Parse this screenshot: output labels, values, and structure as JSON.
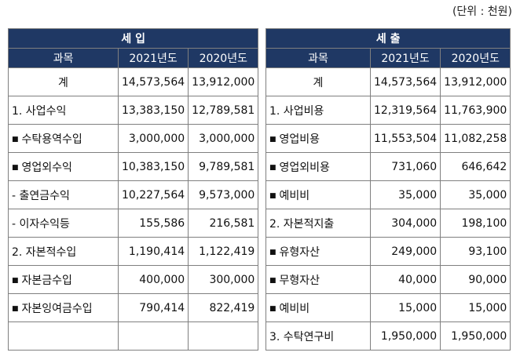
{
  "unit_label": "(단위 : 천원)",
  "income": {
    "title": "세          입",
    "headers": [
      "과목",
      "2021년도",
      "2020년도"
    ],
    "rows": [
      {
        "name": "계",
        "y2021": "14,573,564",
        "y2020": "13,912,000"
      },
      {
        "name": "1.  사업수익",
        "y2021": "13,383,150",
        "y2020": "12,789,581"
      },
      {
        "name": "수탁용역수입",
        "y2021": "3,000,000",
        "y2020": "3,000,000"
      },
      {
        "name": "영업외수익",
        "y2021": "10,383,150",
        "y2020": "9,789,581"
      },
      {
        "name": "-  출연금수익",
        "y2021": "10,227,564",
        "y2020": "9,573,000"
      },
      {
        "name": "-  이자수익등",
        "y2021": "155,586",
        "y2020": "216,581"
      },
      {
        "name": "2.  자본적수입",
        "y2021": "1,190,414",
        "y2020": "1,122,419"
      },
      {
        "name": "자본금수입",
        "y2021": "400,000",
        "y2020": "300,000"
      },
      {
        "name": "자본잉여금수입",
        "y2021": "790,414",
        "y2020": "822,419"
      },
      {
        "name": "",
        "y2021": "",
        "y2020": ""
      }
    ]
  },
  "expense": {
    "title": "세          출",
    "headers": [
      "과목",
      "2021년도",
      "2020년도"
    ],
    "rows": [
      {
        "name": "계",
        "y2021": "14,573,564",
        "y2020": "13,912,000"
      },
      {
        "name": "1.  사업비용",
        "y2021": "12,319,564",
        "y2020": "11,763,900"
      },
      {
        "name": "영업비용",
        "y2021": "11,553,504",
        "y2020": "11,082,258"
      },
      {
        "name": "영업외비용",
        "y2021": "731,060",
        "y2020": "646,642"
      },
      {
        "name": "예비비",
        "y2021": "35,000",
        "y2020": "35,000"
      },
      {
        "name": "2.  자본적지출",
        "y2021": "304,000",
        "y2020": "198,100"
      },
      {
        "name": "유형자산",
        "y2021": "249,000",
        "y2020": "93,100"
      },
      {
        "name": "무형자산",
        "y2021": "40,000",
        "y2020": "90,000"
      },
      {
        "name": "예비비",
        "y2021": "15,000",
        "y2020": "15,000"
      },
      {
        "name": "3.  수탁연구비",
        "y2021": "1,950,000",
        "y2020": "1,950,000"
      }
    ]
  }
}
